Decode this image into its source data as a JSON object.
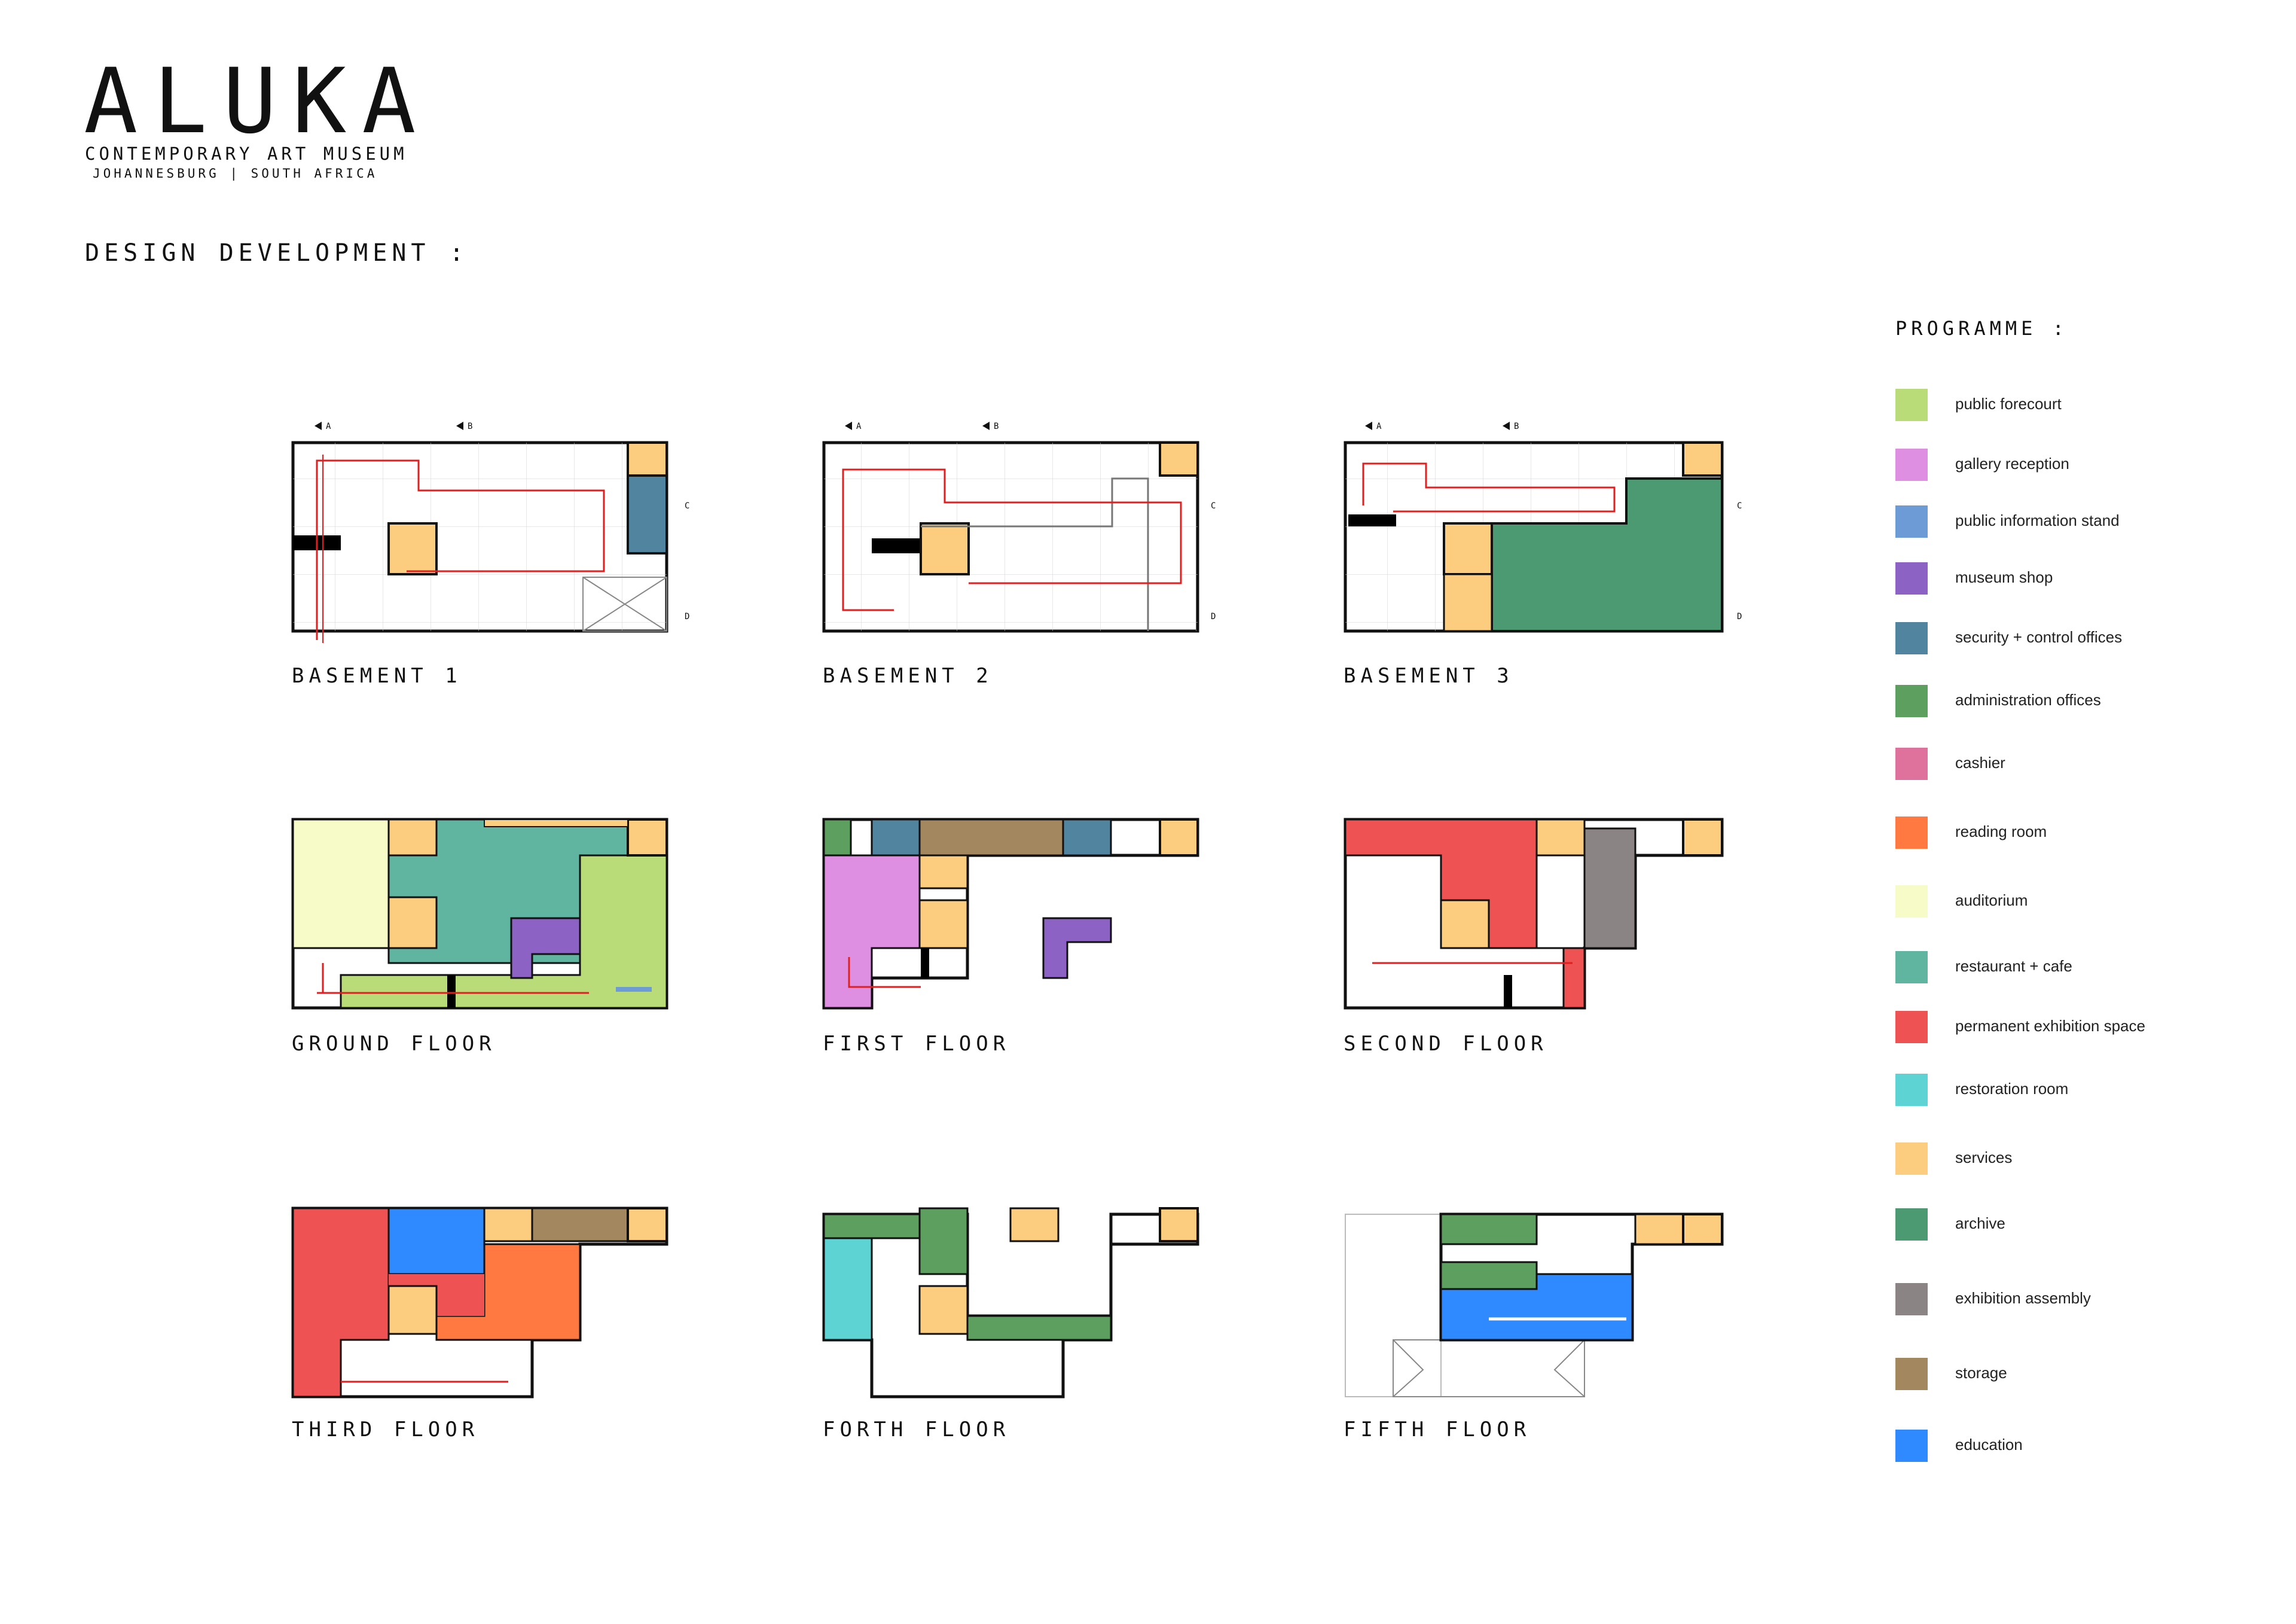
{
  "header": {
    "title": "ALUKA",
    "subtitle": "CONTEMPORARY ART MUSEUM",
    "location": "JOHANNESBURG | SOUTH AFRICA"
  },
  "section_title": "DESIGN DEVELOPMENT :",
  "legend": {
    "title": "PROGRAMME :",
    "items": [
      {
        "label": "public forecourt",
        "color": "#b9db78"
      },
      {
        "label": "gallery reception",
        "color": "#de8fe2"
      },
      {
        "label": "public information stand",
        "color": "#6d9bd6"
      },
      {
        "label": "museum shop",
        "color": "#8c63c4"
      },
      {
        "label": "security + control offices",
        "color": "#50849f"
      },
      {
        "label": "administration offices",
        "color": "#5c9f5f"
      },
      {
        "label": "cashier",
        "color": "#df729c"
      },
      {
        "label": "reading room",
        "color": "#ff7940"
      },
      {
        "label": "auditorium",
        "color": "#f7fbc8"
      },
      {
        "label": "restaurant + cafe",
        "color": "#5fb5a0"
      },
      {
        "label": "permanent exhibition space",
        "color": "#ee5252"
      },
      {
        "label": "restoration room",
        "color": "#5dd3d3"
      },
      {
        "label": "services",
        "color": "#fccd7e"
      },
      {
        "label": "archive",
        "color": "#4b9a72"
      },
      {
        "label": "exhibition assembly",
        "color": "#8a8584"
      },
      {
        "label": "storage",
        "color": "#a3875e"
      },
      {
        "label": "education",
        "color": "#2f8aff"
      }
    ]
  },
  "plans": [
    {
      "label": "BASEMENT 1"
    },
    {
      "label": "BASEMENT 2"
    },
    {
      "label": "BASEMENT 3"
    },
    {
      "label": "GROUND FLOOR"
    },
    {
      "label": "FIRST FLOOR"
    },
    {
      "label": "SECOND FLOOR"
    },
    {
      "label": "THIRD FLOOR"
    },
    {
      "label": "FORTH FLOOR"
    },
    {
      "label": "FIFTH FLOOR"
    }
  ],
  "section_markers": {
    "a": "A",
    "b": "B",
    "c": "C",
    "d": "D"
  }
}
